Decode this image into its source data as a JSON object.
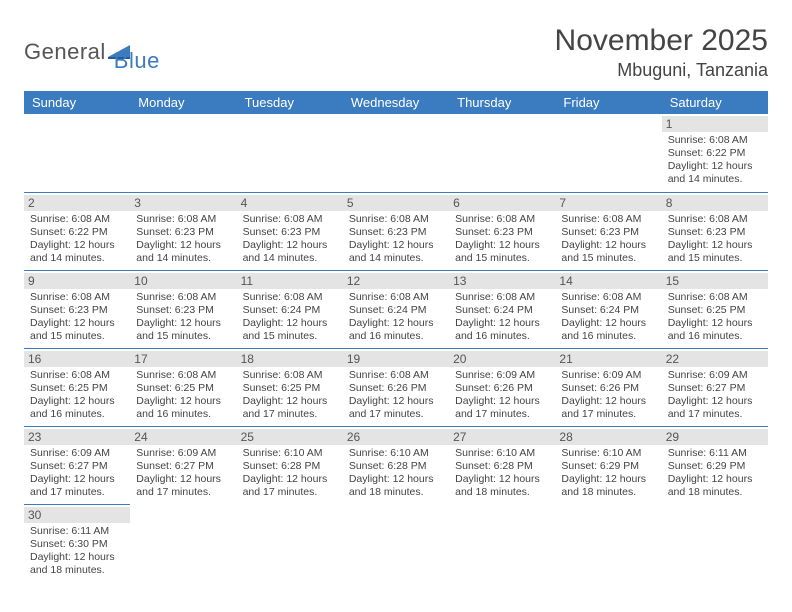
{
  "logo": {
    "part1": "General",
    "part2": "Blue"
  },
  "title": "November 2025",
  "location": "Mbuguni, Tanzania",
  "colors": {
    "header_bg": "#3b7bbf",
    "header_text": "#ffffff",
    "daynum_bg": "#e4e4e4",
    "row_divider": "#3b7bbf",
    "body_text": "#444444",
    "page_bg": "#ffffff"
  },
  "typography": {
    "title_fontsize": 30,
    "location_fontsize": 18,
    "weekday_fontsize": 13,
    "daynum_fontsize": 12,
    "info_fontsize": 10.5
  },
  "weekdays": [
    "Sunday",
    "Monday",
    "Tuesday",
    "Wednesday",
    "Thursday",
    "Friday",
    "Saturday"
  ],
  "weeks": [
    [
      {
        "empty": true
      },
      {
        "empty": true
      },
      {
        "empty": true
      },
      {
        "empty": true
      },
      {
        "empty": true
      },
      {
        "empty": true
      },
      {
        "day": 1,
        "sunrise": "6:08 AM",
        "sunset": "6:22 PM",
        "daylight": "12 hours and 14 minutes."
      }
    ],
    [
      {
        "day": 2,
        "sunrise": "6:08 AM",
        "sunset": "6:22 PM",
        "daylight": "12 hours and 14 minutes."
      },
      {
        "day": 3,
        "sunrise": "6:08 AM",
        "sunset": "6:23 PM",
        "daylight": "12 hours and 14 minutes."
      },
      {
        "day": 4,
        "sunrise": "6:08 AM",
        "sunset": "6:23 PM",
        "daylight": "12 hours and 14 minutes."
      },
      {
        "day": 5,
        "sunrise": "6:08 AM",
        "sunset": "6:23 PM",
        "daylight": "12 hours and 14 minutes."
      },
      {
        "day": 6,
        "sunrise": "6:08 AM",
        "sunset": "6:23 PM",
        "daylight": "12 hours and 15 minutes."
      },
      {
        "day": 7,
        "sunrise": "6:08 AM",
        "sunset": "6:23 PM",
        "daylight": "12 hours and 15 minutes."
      },
      {
        "day": 8,
        "sunrise": "6:08 AM",
        "sunset": "6:23 PM",
        "daylight": "12 hours and 15 minutes."
      }
    ],
    [
      {
        "day": 9,
        "sunrise": "6:08 AM",
        "sunset": "6:23 PM",
        "daylight": "12 hours and 15 minutes."
      },
      {
        "day": 10,
        "sunrise": "6:08 AM",
        "sunset": "6:23 PM",
        "daylight": "12 hours and 15 minutes."
      },
      {
        "day": 11,
        "sunrise": "6:08 AM",
        "sunset": "6:24 PM",
        "daylight": "12 hours and 15 minutes."
      },
      {
        "day": 12,
        "sunrise": "6:08 AM",
        "sunset": "6:24 PM",
        "daylight": "12 hours and 16 minutes."
      },
      {
        "day": 13,
        "sunrise": "6:08 AM",
        "sunset": "6:24 PM",
        "daylight": "12 hours and 16 minutes."
      },
      {
        "day": 14,
        "sunrise": "6:08 AM",
        "sunset": "6:24 PM",
        "daylight": "12 hours and 16 minutes."
      },
      {
        "day": 15,
        "sunrise": "6:08 AM",
        "sunset": "6:25 PM",
        "daylight": "12 hours and 16 minutes."
      }
    ],
    [
      {
        "day": 16,
        "sunrise": "6:08 AM",
        "sunset": "6:25 PM",
        "daylight": "12 hours and 16 minutes."
      },
      {
        "day": 17,
        "sunrise": "6:08 AM",
        "sunset": "6:25 PM",
        "daylight": "12 hours and 16 minutes."
      },
      {
        "day": 18,
        "sunrise": "6:08 AM",
        "sunset": "6:25 PM",
        "daylight": "12 hours and 17 minutes."
      },
      {
        "day": 19,
        "sunrise": "6:08 AM",
        "sunset": "6:26 PM",
        "daylight": "12 hours and 17 minutes."
      },
      {
        "day": 20,
        "sunrise": "6:09 AM",
        "sunset": "6:26 PM",
        "daylight": "12 hours and 17 minutes."
      },
      {
        "day": 21,
        "sunrise": "6:09 AM",
        "sunset": "6:26 PM",
        "daylight": "12 hours and 17 minutes."
      },
      {
        "day": 22,
        "sunrise": "6:09 AM",
        "sunset": "6:27 PM",
        "daylight": "12 hours and 17 minutes."
      }
    ],
    [
      {
        "day": 23,
        "sunrise": "6:09 AM",
        "sunset": "6:27 PM",
        "daylight": "12 hours and 17 minutes."
      },
      {
        "day": 24,
        "sunrise": "6:09 AM",
        "sunset": "6:27 PM",
        "daylight": "12 hours and 17 minutes."
      },
      {
        "day": 25,
        "sunrise": "6:10 AM",
        "sunset": "6:28 PM",
        "daylight": "12 hours and 17 minutes."
      },
      {
        "day": 26,
        "sunrise": "6:10 AM",
        "sunset": "6:28 PM",
        "daylight": "12 hours and 18 minutes."
      },
      {
        "day": 27,
        "sunrise": "6:10 AM",
        "sunset": "6:28 PM",
        "daylight": "12 hours and 18 minutes."
      },
      {
        "day": 28,
        "sunrise": "6:10 AM",
        "sunset": "6:29 PM",
        "daylight": "12 hours and 18 minutes."
      },
      {
        "day": 29,
        "sunrise": "6:11 AM",
        "sunset": "6:29 PM",
        "daylight": "12 hours and 18 minutes."
      }
    ],
    [
      {
        "day": 30,
        "sunrise": "6:11 AM",
        "sunset": "6:30 PM",
        "daylight": "12 hours and 18 minutes."
      },
      {
        "empty": true
      },
      {
        "empty": true
      },
      {
        "empty": true
      },
      {
        "empty": true
      },
      {
        "empty": true
      },
      {
        "empty": true
      }
    ]
  ],
  "labels": {
    "sunrise": "Sunrise:",
    "sunset": "Sunset:",
    "daylight": "Daylight:"
  }
}
